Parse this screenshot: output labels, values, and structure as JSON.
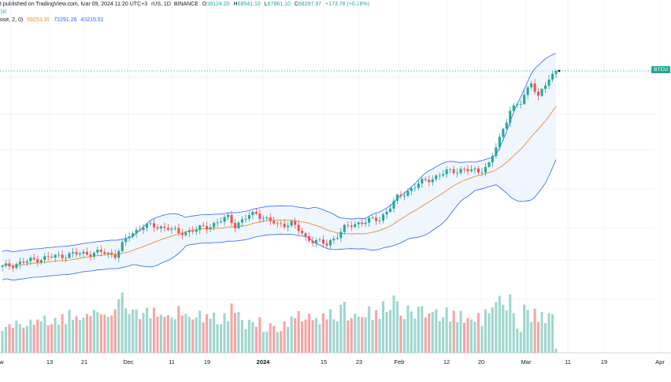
{
  "header": {
    "line1_prefix": "t published on TradingView.com, Mar 09, 2024 11:20 UTC+3",
    "line1_pair": "rUS, 1D, BINANCE",
    "o_label": "O",
    "o_value": "68124.20",
    "h_label": "H",
    "h_value": "68541.10",
    "l_label": "L",
    "l_value": "67861.10",
    "c_label": "C",
    "c_value": "68297.97",
    "change": "+173.78 (+0.26%)",
    "line2": "1K",
    "bb_prefix": "ose, 2, 0)",
    "bb_basis": "59253.39",
    "bb_upper": "72291.26",
    "bb_lower": "46215.51"
  },
  "price_label": "BTCU",
  "colors": {
    "up": "#26a69a",
    "down": "#ef5350",
    "vol_up": "#9fd6cf",
    "vol_down": "#f5a5a5",
    "basis": "#f08a2e",
    "band": "#2962ff",
    "band_fill": "#e6f0fb"
  },
  "chart_data": {
    "type": "candlestick",
    "x_ticks": [
      "w",
      "13",
      "21",
      "Dec",
      "11",
      "19",
      "2024",
      "15",
      "23",
      "Feb",
      "12",
      "20",
      "Mar",
      "11",
      "19",
      "Apr"
    ],
    "x_tick_bold": "2024",
    "ylim": [
      30500,
      75000
    ],
    "volume_ylim": [
      0,
      1
    ]
  }
}
